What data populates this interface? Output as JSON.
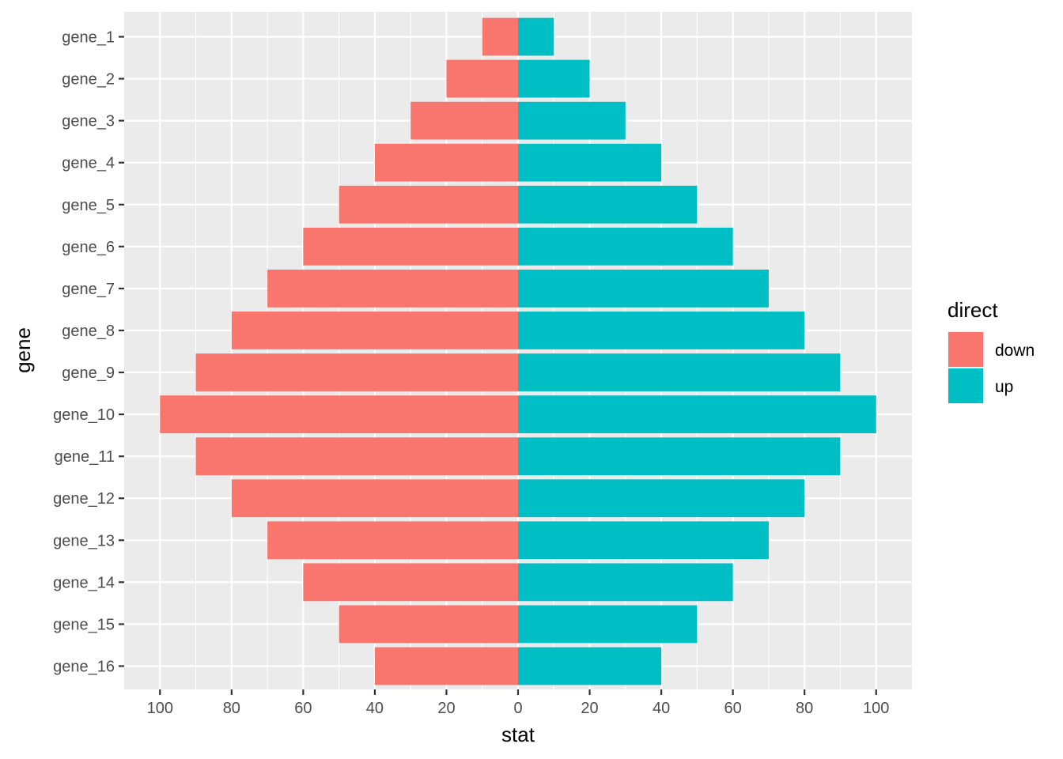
{
  "chart_data": {
    "type": "bar",
    "orientation": "horizontal",
    "layout": "diverging",
    "categories": [
      "gene_1",
      "gene_2",
      "gene_3",
      "gene_4",
      "gene_5",
      "gene_6",
      "gene_7",
      "gene_8",
      "gene_9",
      "gene_10",
      "gene_11",
      "gene_12",
      "gene_13",
      "gene_14",
      "gene_15",
      "gene_16"
    ],
    "series": [
      {
        "name": "down",
        "color": "#F8766D",
        "values": [
          10,
          20,
          30,
          40,
          50,
          60,
          70,
          80,
          90,
          100,
          90,
          80,
          70,
          60,
          50,
          40
        ]
      },
      {
        "name": "up",
        "color": "#00BFC4",
        "values": [
          10,
          20,
          30,
          40,
          50,
          60,
          70,
          80,
          90,
          100,
          90,
          80,
          70,
          60,
          50,
          40
        ]
      }
    ],
    "xlabel": "stat",
    "ylabel": "gene",
    "xlim": [
      -110,
      110
    ],
    "xticks": [
      -100,
      -80,
      -60,
      -40,
      -20,
      0,
      20,
      40,
      60,
      80,
      100
    ],
    "xtick_labels": [
      "100",
      "80",
      "60",
      "40",
      "20",
      "0",
      "20",
      "40",
      "60",
      "80",
      "100"
    ],
    "grid": true,
    "legend": {
      "title": "direct",
      "position": "right"
    },
    "colors": {
      "panel_background": "#EBEBEB",
      "grid": "#FFFFFF",
      "tick_text": "#4D4D4D"
    }
  }
}
